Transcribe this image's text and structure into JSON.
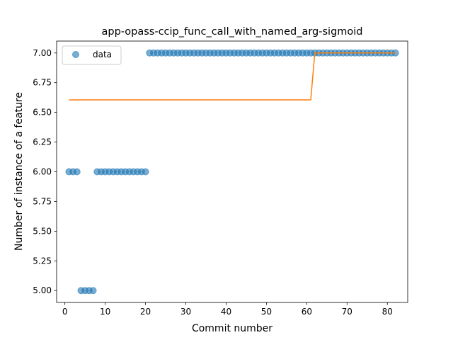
{
  "chart_data": {
    "type": "scatter",
    "title": "app-opass-ccip_func_call_with_named_arg-sigmoid",
    "xlabel": "Commit number",
    "ylabel": "Number of instance of a feature",
    "xlim": [
      -2.05,
      85.05
    ],
    "ylim": [
      4.9,
      7.1
    ],
    "xticks": [
      0,
      10,
      20,
      30,
      40,
      50,
      60,
      70,
      80
    ],
    "yticks": [
      5.0,
      5.25,
      5.5,
      5.75,
      6.0,
      6.25,
      6.5,
      6.75,
      7.0
    ],
    "ytick_labels": [
      "5.00",
      "5.25",
      "5.50",
      "5.75",
      "6.00",
      "6.25",
      "6.50",
      "6.75",
      "7.00"
    ],
    "grid": false,
    "legend": {
      "position": "top-left",
      "entries": [
        "data"
      ]
    },
    "colors": {
      "data": "#1f77b4",
      "fit": "#ff7f0e"
    },
    "series": [
      {
        "name": "data",
        "kind": "scatter",
        "points": [
          [
            1,
            6
          ],
          [
            2,
            6
          ],
          [
            3,
            6
          ],
          [
            4,
            5
          ],
          [
            5,
            5
          ],
          [
            6,
            5
          ],
          [
            7,
            5
          ],
          [
            8,
            6
          ],
          [
            9,
            6
          ],
          [
            10,
            6
          ],
          [
            11,
            6
          ],
          [
            12,
            6
          ],
          [
            13,
            6
          ],
          [
            14,
            6
          ],
          [
            15,
            6
          ],
          [
            16,
            6
          ],
          [
            17,
            6
          ],
          [
            18,
            6
          ],
          [
            19,
            6
          ],
          [
            20,
            6
          ],
          [
            21,
            7
          ],
          [
            22,
            7
          ],
          [
            23,
            7
          ],
          [
            24,
            7
          ],
          [
            25,
            7
          ],
          [
            26,
            7
          ],
          [
            27,
            7
          ],
          [
            28,
            7
          ],
          [
            29,
            7
          ],
          [
            30,
            7
          ],
          [
            31,
            7
          ],
          [
            32,
            7
          ],
          [
            33,
            7
          ],
          [
            34,
            7
          ],
          [
            35,
            7
          ],
          [
            36,
            7
          ],
          [
            37,
            7
          ],
          [
            38,
            7
          ],
          [
            39,
            7
          ],
          [
            40,
            7
          ],
          [
            41,
            7
          ],
          [
            42,
            7
          ],
          [
            43,
            7
          ],
          [
            44,
            7
          ],
          [
            45,
            7
          ],
          [
            46,
            7
          ],
          [
            47,
            7
          ],
          [
            48,
            7
          ],
          [
            49,
            7
          ],
          [
            50,
            7
          ],
          [
            51,
            7
          ],
          [
            52,
            7
          ],
          [
            53,
            7
          ],
          [
            54,
            7
          ],
          [
            55,
            7
          ],
          [
            56,
            7
          ],
          [
            57,
            7
          ],
          [
            58,
            7
          ],
          [
            59,
            7
          ],
          [
            60,
            7
          ],
          [
            61,
            7
          ],
          [
            62,
            7
          ],
          [
            63,
            7
          ],
          [
            64,
            7
          ],
          [
            65,
            7
          ],
          [
            66,
            7
          ],
          [
            67,
            7
          ],
          [
            68,
            7
          ],
          [
            69,
            7
          ],
          [
            70,
            7
          ],
          [
            71,
            7
          ],
          [
            72,
            7
          ],
          [
            73,
            7
          ],
          [
            74,
            7
          ],
          [
            75,
            7
          ],
          [
            76,
            7
          ],
          [
            77,
            7
          ],
          [
            78,
            7
          ],
          [
            79,
            7
          ],
          [
            80,
            7
          ],
          [
            81,
            7
          ],
          [
            82,
            7
          ]
        ]
      },
      {
        "kind": "line",
        "points": [
          [
            1,
            6.605
          ],
          [
            61,
            6.605
          ],
          [
            62,
            7.0
          ],
          [
            82,
            7.0
          ]
        ]
      }
    ]
  }
}
